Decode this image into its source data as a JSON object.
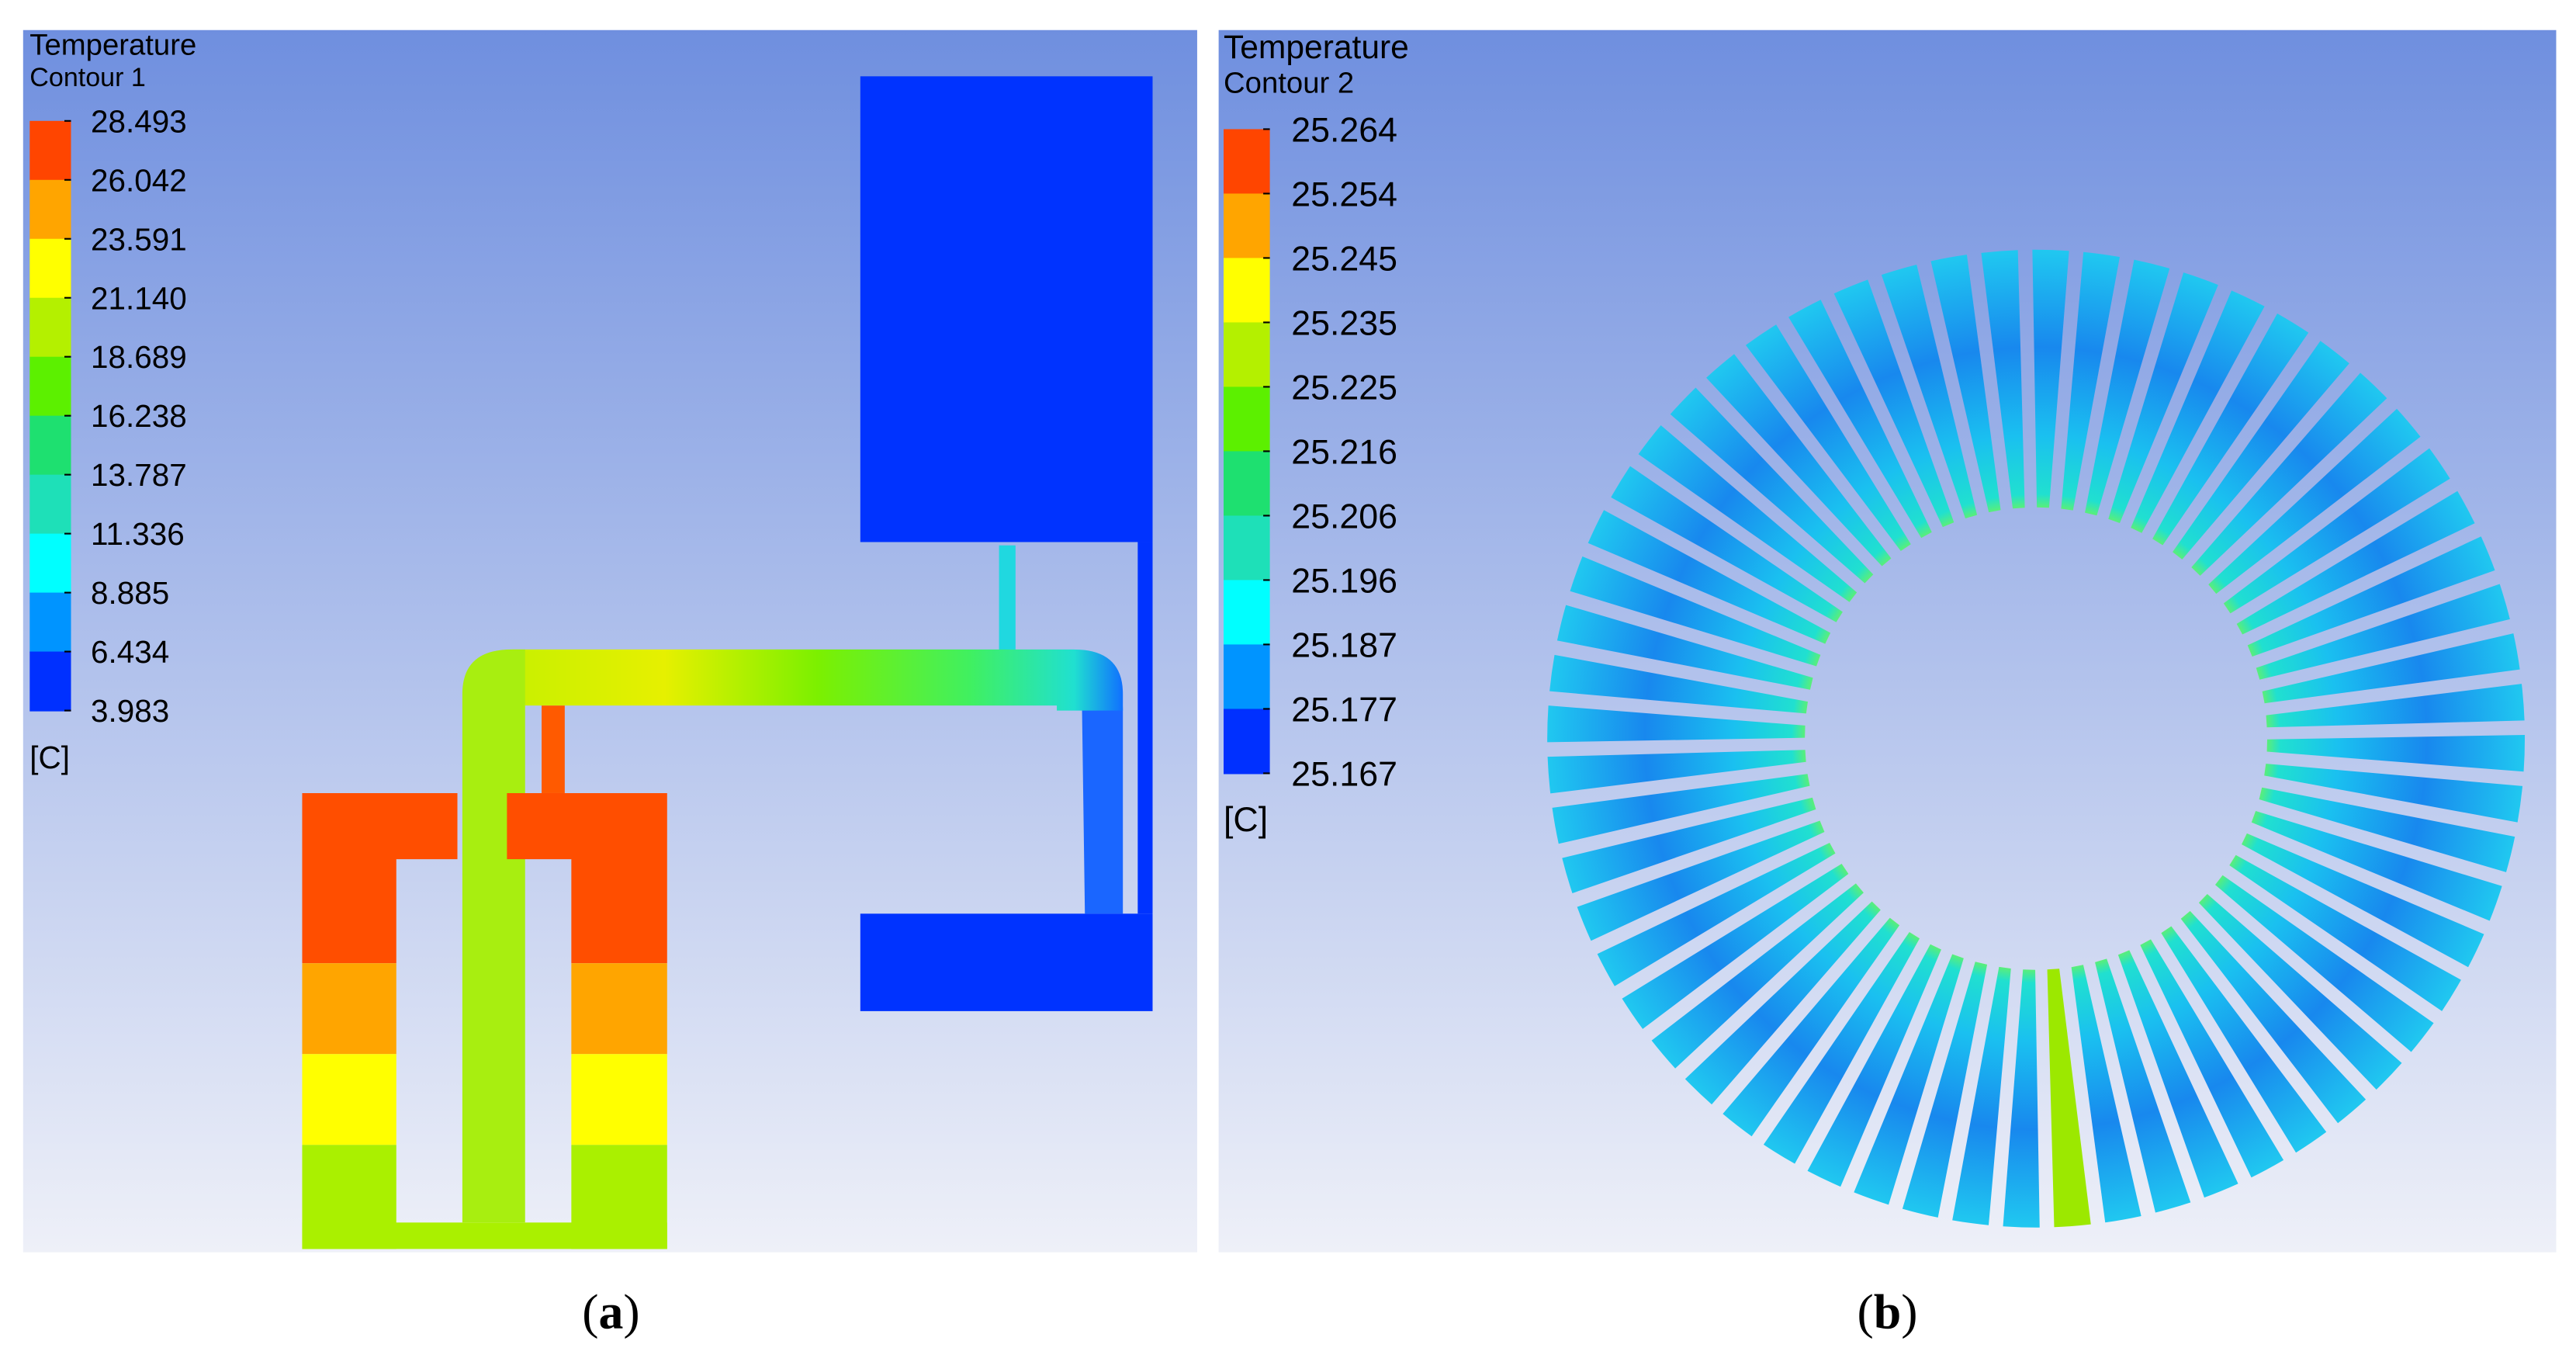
{
  "panels": [
    {
      "title": "Temperature",
      "subtitle": "Contour 1",
      "levels": [
        "28.493",
        "26.042",
        "23.591",
        "21.140",
        "18.689",
        "16.238",
        "13.787",
        "11.336",
        "8.885",
        "6.434",
        "3.983"
      ],
      "unit": "[C]",
      "caption_open": "(",
      "caption_letter": "a",
      "caption_close": ")"
    },
    {
      "title": "Temperature",
      "subtitle": "Contour 2",
      "levels": [
        "25.264",
        "25.254",
        "25.245",
        "25.235",
        "25.225",
        "25.216",
        "25.206",
        "25.196",
        "25.187",
        "25.177",
        "25.167"
      ],
      "unit": "[C]",
      "caption_open": "(",
      "caption_letter": "b",
      "caption_close": ")"
    }
  ]
}
